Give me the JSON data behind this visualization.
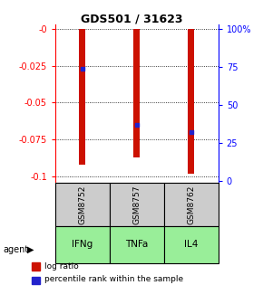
{
  "title": "GDS501 / 31623",
  "samples": [
    "GSM8752",
    "GSM8757",
    "GSM8762"
  ],
  "agents": [
    "IFNg",
    "TNFa",
    "IL4"
  ],
  "log_ratios": [
    -0.092,
    -0.087,
    -0.098
  ],
  "percentile_ranks": [
    74,
    37,
    32
  ],
  "ylim_left": [
    -0.104,
    0.003
  ],
  "ylim_right": [
    -1.04,
    103
  ],
  "yticks_left": [
    0,
    -0.025,
    -0.05,
    -0.075,
    -0.1
  ],
  "yticks_right": [
    0,
    25,
    50,
    75,
    100
  ],
  "ytick_labels_right": [
    "0",
    "25",
    "50",
    "75",
    "100%"
  ],
  "bar_color": "#cc1100",
  "dot_color": "#2222cc",
  "sample_bg": "#cccccc",
  "agent_color": "#99ee99",
  "legend_bar_label": "log ratio",
  "legend_dot_label": "percentile rank within the sample",
  "bar_width": 0.12,
  "title_fontsize": 9,
  "tick_fontsize": 7,
  "sample_fontsize": 6.5,
  "agent_fontsize": 7.5
}
